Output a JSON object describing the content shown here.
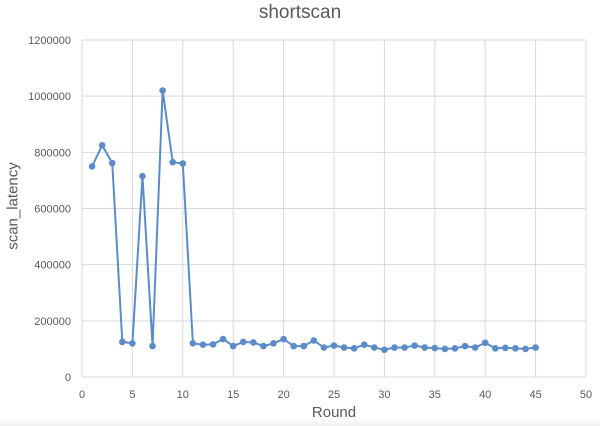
{
  "chart_data": {
    "type": "line",
    "title": "shortscan",
    "xlabel": "Round",
    "ylabel": "scan_latency",
    "xlim": [
      0,
      50
    ],
    "ylim": [
      0,
      1200000
    ],
    "x_ticks": [
      "0",
      "5",
      "10",
      "15",
      "20",
      "25",
      "30",
      "35",
      "40",
      "45",
      "50"
    ],
    "y_ticks": [
      "0",
      "200000",
      "400000",
      "600000",
      "800000",
      "1000000",
      "1200000"
    ],
    "grid": true,
    "legend": "none",
    "series": [
      {
        "color": "#5b8cc8",
        "x": [
          1,
          2,
          3,
          4,
          5,
          6,
          7,
          8,
          9,
          10,
          11,
          12,
          13,
          14,
          15,
          16,
          17,
          18,
          19,
          20,
          21,
          22,
          23,
          24,
          25,
          26,
          27,
          28,
          29,
          30,
          31,
          32,
          33,
          34,
          35,
          36,
          37,
          38,
          39,
          40,
          41,
          42,
          43,
          44,
          45
        ],
        "y": [
          750000,
          825000,
          762000,
          125000,
          120000,
          715000,
          110000,
          1020000,
          765000,
          760000,
          120000,
          115000,
          116000,
          135000,
          110000,
          125000,
          123000,
          110000,
          120000,
          135000,
          110000,
          110000,
          130000,
          105000,
          112000,
          105000,
          102000,
          115000,
          105000,
          97000,
          105000,
          105000,
          112000,
          105000,
          103000,
          100000,
          102000,
          110000,
          105000,
          122000,
          102000,
          104000,
          102000,
          100000,
          105000
        ]
      }
    ]
  }
}
